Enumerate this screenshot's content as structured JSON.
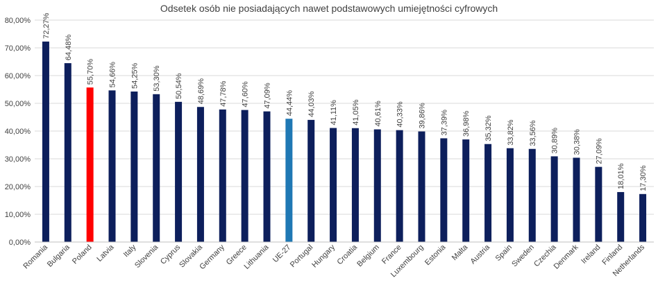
{
  "chart_data": {
    "type": "bar",
    "title": "Odsetek osób nie posiadających nawet podstawowych umiejętności cyfrowych",
    "xlabel": "",
    "ylabel": "",
    "ylim": [
      0,
      80
    ],
    "yticks": [
      0,
      10,
      20,
      30,
      40,
      50,
      60,
      70,
      80
    ],
    "ytick_labels": [
      "0,00%",
      "10,00%",
      "20,00%",
      "30,00%",
      "40,00%",
      "50,00%",
      "60,00%",
      "70,00%",
      "80,00%"
    ],
    "grid": "horizontal",
    "legend": "none",
    "categories": [
      "Romania",
      "Bulgaria",
      "Poland",
      "Latvia",
      "Italy",
      "Slovenia",
      "Cyprus",
      "Slovakia",
      "Germany",
      "Greece",
      "Lithuania",
      "UE-27",
      "Portugal",
      "Hungary",
      "Croatia",
      "Belgium",
      "France",
      "Luxembourg",
      "Estonia",
      "Malta",
      "Austria",
      "Spain",
      "Sweden",
      "Czechia",
      "Denmark",
      "Ireland",
      "Finland",
      "Netherlands"
    ],
    "values": [
      72.27,
      64.48,
      55.7,
      54.66,
      54.25,
      53.3,
      50.54,
      48.69,
      47.78,
      47.6,
      47.09,
      44.44,
      44.03,
      41.11,
      41.05,
      40.61,
      40.33,
      39.86,
      37.39,
      36.98,
      35.32,
      33.82,
      33.56,
      30.89,
      30.38,
      27.09,
      18.01,
      17.3
    ],
    "data_labels": [
      "72,27%",
      "64,48%",
      "55,70%",
      "54,66%",
      "54,25%",
      "53,30%",
      "50,54%",
      "48,69%",
      "47,78%",
      "47,60%",
      "47,09%",
      "44,44%",
      "44,03%",
      "41,11%",
      "41,05%",
      "40,61%",
      "40,33%",
      "39,86%",
      "37,39%",
      "36,98%",
      "35,32%",
      "33,82%",
      "33,56%",
      "30,89%",
      "30,38%",
      "27,09%",
      "18,01%",
      "17,30%"
    ],
    "colors": {
      "default": "#0d1f5c",
      "Poland": "#ff0000",
      "UE-27": "#1f78b4"
    }
  }
}
